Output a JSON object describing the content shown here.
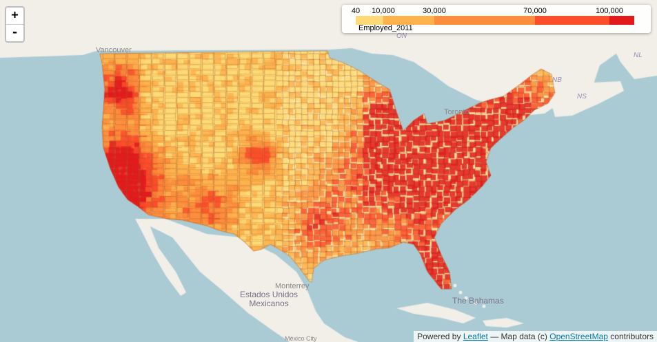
{
  "legend": {
    "caption": "Employed_2011",
    "breaks": [
      {
        "label": "40",
        "value": 40
      },
      {
        "label": "10,000",
        "value": 10000
      },
      {
        "label": "30,000",
        "value": 30000
      },
      {
        "label": "70,000",
        "value": 70000
      },
      {
        "label": "100,000",
        "value": 100000
      }
    ],
    "colors": [
      "#fed976",
      "#feb24c",
      "#fd8d3c",
      "#fc4e2a",
      "#e31a1c"
    ]
  },
  "zoom": {
    "in_label": "+",
    "out_label": "-"
  },
  "attribution": {
    "prefix": "Powered by",
    "leaflet": "Leaflet",
    "middle": "— Map data (c)",
    "osm": "OpenStreetMap",
    "suffix": "contributors"
  },
  "places": {
    "vancouver": "Vancouver",
    "on": "ON",
    "toronto": "Toronto",
    "nb": "NB",
    "ns": "NS",
    "nl": "NL",
    "monterrey": "Monterrey",
    "estados_unidos_mexicanos": "Estados Unidos\nMexicanos",
    "bahamas": "The Bahamas",
    "mexico_city": "México City"
  },
  "colors": {
    "water": "#aacbd4",
    "land": "#f2efe9",
    "county_border": "#a0562b"
  }
}
